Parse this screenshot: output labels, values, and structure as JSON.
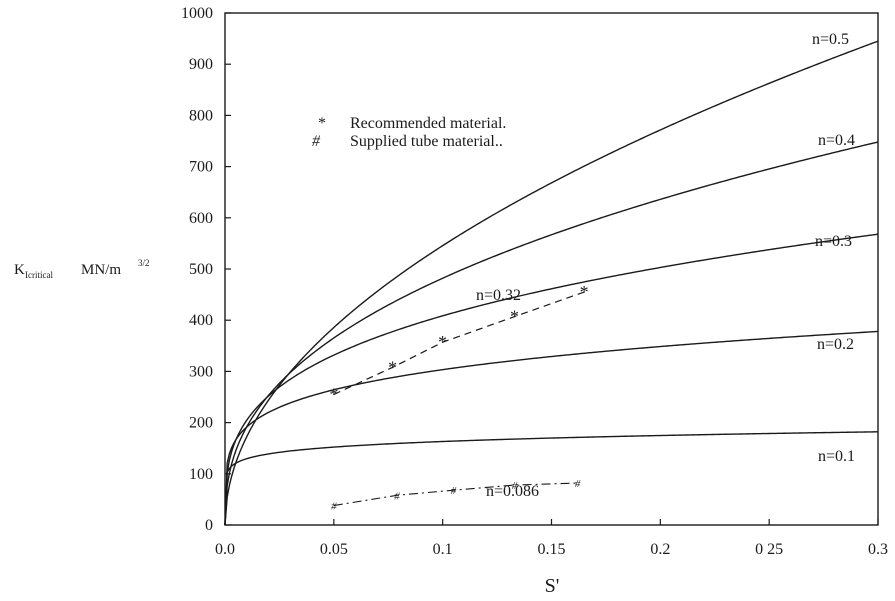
{
  "chart_data": {
    "type": "line",
    "xlabel": "S'",
    "ylabel_main": "K",
    "ylabel_sub": "Icritical",
    "ylabel_unit": "MN/m",
    "ylabel_exp": "3/2",
    "xlim": [
      0,
      0.3
    ],
    "ylim": [
      0,
      1000
    ],
    "x_ticks": [
      0,
      0.05,
      0.1,
      0.15,
      0.2,
      0.25,
      0.3
    ],
    "x_tick_labels": [
      "0.0",
      "0.05",
      "0.1",
      "0.15",
      "0.2",
      "0 25",
      "0.3"
    ],
    "y_ticks": [
      0,
      100,
      200,
      300,
      400,
      500,
      600,
      700,
      800,
      900,
      1000
    ],
    "y_tick_labels": [
      "0",
      "100",
      "200",
      "300",
      "400",
      "500",
      "600",
      "700",
      "800",
      "900",
      "1000"
    ],
    "grid": false,
    "series": [
      {
        "name": "n=0.5",
        "exponent": 0.5,
        "y_at_xmax": 945
      },
      {
        "name": "n=0.4",
        "exponent": 0.4,
        "y_at_xmax": 748
      },
      {
        "name": "n=0.3",
        "exponent": 0.3,
        "y_at_xmax": 568
      },
      {
        "name": "n=0.2",
        "exponent": 0.2,
        "y_at_xmax": 378
      },
      {
        "name": "n=0.1",
        "exponent": 0.1,
        "y_at_xmax": 182
      }
    ],
    "recommended_points": {
      "name": "n=0.32",
      "x": [
        0.05,
        0.077,
        0.1,
        0.133,
        0.165
      ],
      "y": [
        255,
        308,
        357,
        407,
        455
      ]
    },
    "supplied_points": {
      "name": "n=0.086",
      "x": [
        0.05,
        0.079,
        0.105,
        0.133,
        0.162
      ],
      "y": [
        38,
        58,
        68,
        78,
        82
      ]
    },
    "legend": {
      "placement": "upper-left",
      "items": [
        {
          "symbol": "*",
          "label": "Recommended material."
        },
        {
          "symbol": "#",
          "label": "Supplied tube material.."
        }
      ]
    }
  }
}
